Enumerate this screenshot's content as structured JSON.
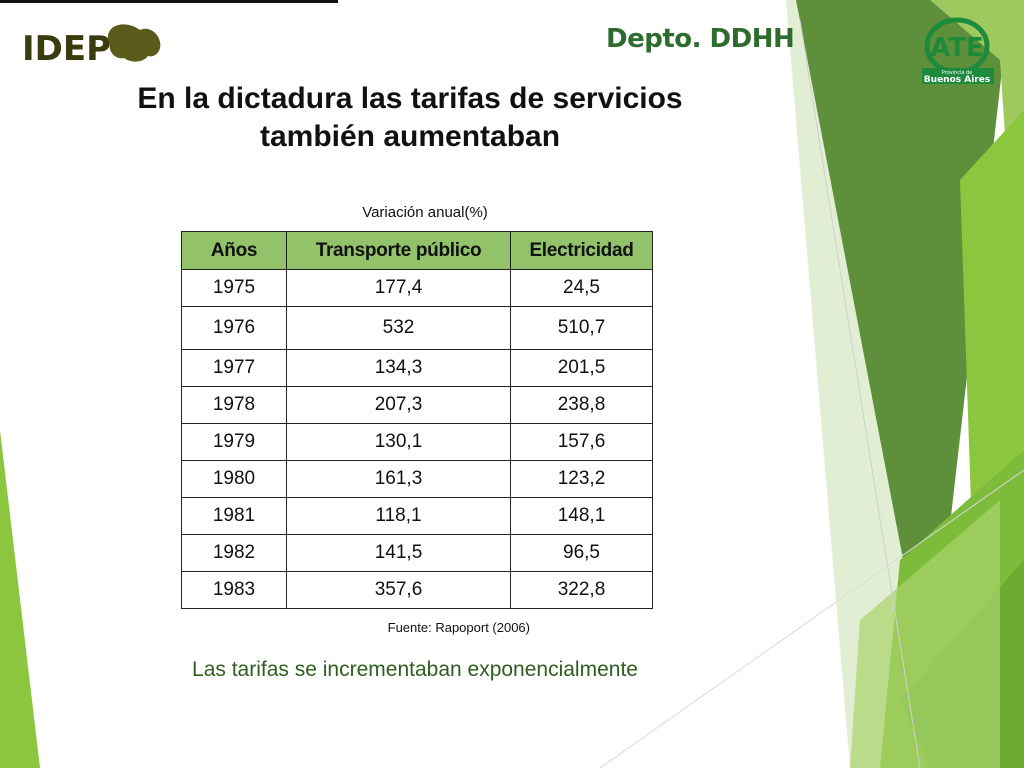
{
  "header": {
    "logo_idep": "IDEP",
    "dept": "Depto. DDHH",
    "logo_ate": "ATE",
    "logo_ate_sub_small": "Provincia de",
    "logo_ate_sub": "Buenos Aires"
  },
  "slide": {
    "title_line1": "En la dictadura las tarifas de servicios",
    "title_line2": "también aumentaban",
    "caption": "Variación anual(%)",
    "source": "Fuente: Rapoport (2006)",
    "conclusion": "Las tarifas se incrementaban exponencialmente"
  },
  "table": {
    "headers": [
      "Años",
      "Transporte público",
      "Electricidad"
    ],
    "rows": [
      [
        "1975",
        "177,4",
        "24,5"
      ],
      [
        "1976",
        "532",
        "510,7"
      ],
      [
        "1977",
        "134,3",
        "201,5"
      ],
      [
        "1978",
        "207,3",
        "238,8"
      ],
      [
        "1979",
        "130,1",
        "157,6"
      ],
      [
        "1980",
        "161,3",
        "123,2"
      ],
      [
        "1981",
        "118,1",
        "148,1"
      ],
      [
        "1982",
        "141,5",
        "96,5"
      ],
      [
        "1983",
        "357,6",
        "322,8"
      ]
    ]
  },
  "colors": {
    "header_fill": "#92c36b",
    "dept_text": "#2e6b2e",
    "conclusion_text": "#2e5e1e",
    "deco_dark": "#5e8f3a",
    "deco_light": "#8cc63f"
  }
}
